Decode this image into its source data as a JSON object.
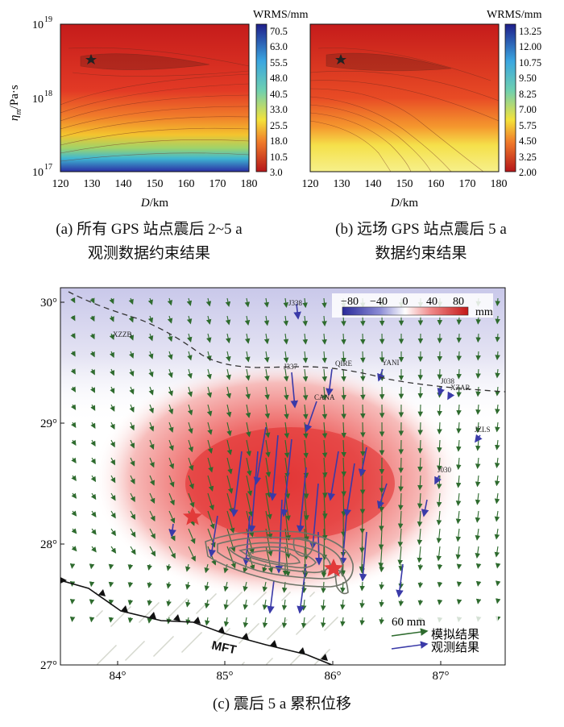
{
  "panel_a": {
    "colorbar_title": "WRMS/mm",
    "colorbar_ticks": [
      "70.5",
      "63.0",
      "55.5",
      "48.0",
      "40.5",
      "33.0",
      "25.5",
      "18.0",
      "10.5",
      "3.0"
    ],
    "y_label_main": "η",
    "y_label_sub": "m",
    "y_label_unit": "/Pa·s",
    "y_ticks_base": [
      "10",
      "10",
      "10"
    ],
    "y_ticks_exp": [
      "19",
      "18",
      "17"
    ],
    "x_ticks": [
      "120",
      "130",
      "140",
      "150",
      "160",
      "170",
      "180"
    ],
    "x_label_var": "D",
    "x_label_unit": "/km",
    "caption_line1": "(a) 所有 GPS 站点震后 2~5 a",
    "caption_line2": "观测数据约束结果"
  },
  "panel_b": {
    "colorbar_title": "WRMS/mm",
    "colorbar_ticks": [
      "13.25",
      "12.00",
      "10.75",
      "9.50",
      "8.25",
      "7.00",
      "5.75",
      "4.50",
      "3.25",
      "2.00"
    ],
    "x_ticks": [
      "120",
      "130",
      "140",
      "150",
      "160",
      "170",
      "180"
    ],
    "x_label_var": "D",
    "x_label_unit": "/km",
    "caption_line1": "(b) 远场 GPS 站点震后 5 a",
    "caption_line2": "数据约束结果"
  },
  "panel_c": {
    "lat_ticks": [
      "30°",
      "29°",
      "28°",
      "27°"
    ],
    "lon_ticks": [
      "84°",
      "85°",
      "86°",
      "87°"
    ],
    "colorbar_ticks": [
      "−80",
      "−40",
      "0",
      "40",
      "80"
    ],
    "colorbar_unit": "mm",
    "stations": [
      "J338",
      "XZZB",
      "J337",
      "QIRE",
      "YANI",
      "J038",
      "XZAR",
      "CANA",
      "JZLS",
      "J030"
    ],
    "fault_label": "MFT",
    "scale_label": "60 mm",
    "legend_model": "模拟结果",
    "legend_obs": "观测结果",
    "caption": "(c) 震后 5 a 累积位移"
  },
  "colors": {
    "model_arrow": "#2e6b2e",
    "obs_arrow": "#3a3aa8",
    "star": "#e23a3a"
  }
}
